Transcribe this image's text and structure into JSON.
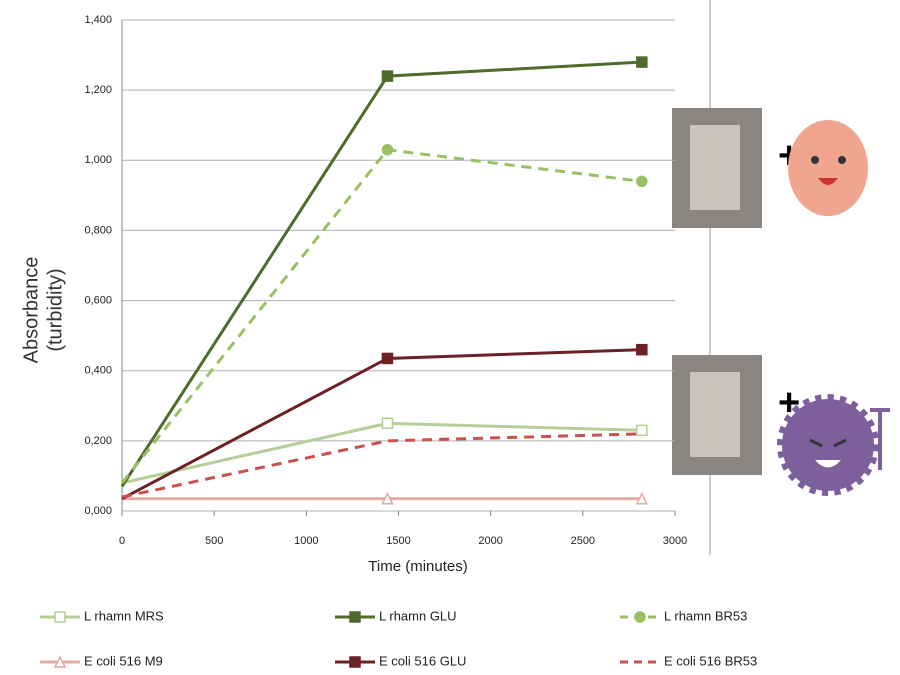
{
  "chart_data": {
    "type": "line",
    "xlabel": "Time (minutes)",
    "ylabel": [
      "Absorbance",
      "(turbidity)"
    ],
    "x": [
      0,
      1440,
      2820
    ],
    "xlim": [
      0,
      3000
    ],
    "xticks": [
      0,
      500,
      1000,
      1500,
      2000,
      2500,
      3000
    ],
    "ylim": [
      0,
      1.4
    ],
    "yticks": [
      {
        "value": 0,
        "label": "0,000"
      },
      {
        "value": 0.2,
        "label": "0,200"
      },
      {
        "value": 0.4,
        "label": "0,400"
      },
      {
        "value": 0.6,
        "label": "0,600"
      },
      {
        "value": 0.8,
        "label": "0,800"
      },
      {
        "value": 1.0,
        "label": "1,000"
      },
      {
        "value": 1.2,
        "label": "1,200"
      },
      {
        "value": 1.4,
        "label": "1,400"
      }
    ],
    "grid": true,
    "series": [
      {
        "name": "L rhamn MRS",
        "color": "#b5cf98",
        "values": [
          0.08,
          0.25,
          0.23
        ],
        "dash": false,
        "marker": "square",
        "hollow": true
      },
      {
        "name": "L rhamn GLU",
        "color": "#4f6b2c",
        "values": [
          0.07,
          1.24,
          1.28
        ],
        "dash": false,
        "marker": "square",
        "hollow": false
      },
      {
        "name": "L rhamn BR53",
        "color": "#9bc063",
        "values": [
          0.08,
          1.03,
          0.94
        ],
        "dash": true,
        "marker": "circle",
        "hollow": false
      },
      {
        "name": "E coli 516 M9",
        "color": "#e0a9a4",
        "values": [
          0.035,
          0.035,
          0.035
        ],
        "dash": false,
        "marker": "triangle",
        "hollow": true
      },
      {
        "name": "E coli 516 GLU",
        "color": "#6b2126",
        "values": [
          0.035,
          0.435,
          0.46
        ],
        "dash": false,
        "marker": "square",
        "hollow": false
      },
      {
        "name": "E coli 516 BR53",
        "color": "#c9504c",
        "values": [
          0.04,
          0.2,
          0.22
        ],
        "dash": true,
        "marker": "none",
        "hollow": false
      }
    ]
  }
}
